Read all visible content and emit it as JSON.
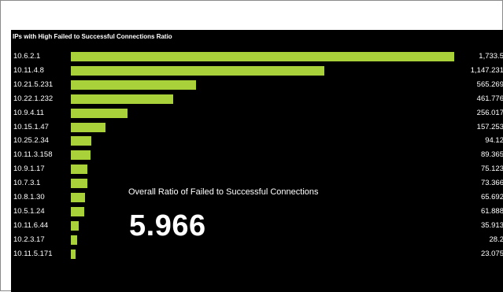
{
  "panel": {
    "title": "IPs with High Failed to Successful Connections Ratio"
  },
  "colors": {
    "bar": "#a8d13a",
    "background": "#000000",
    "text": "#ffffff"
  },
  "metric": {
    "label": "Overall Ratio of Failed to Successful Connections",
    "value": "5.966"
  },
  "chart_data": {
    "type": "bar",
    "orientation": "horizontal",
    "title": "IPs with High Failed to Successful Connections Ratio",
    "categories": [
      "10.6.2.1",
      "10.11.4.8",
      "10.21.5.231",
      "10.22.1.232",
      "10.9.4.11",
      "10.15.1.47",
      "10.25.2.34",
      "10.11.3.158",
      "10.9.1.17",
      "10.7.3.1",
      "10.8.1.30",
      "10.5.1.24",
      "10.11.6.44",
      "10.2.3.17",
      "10.11.5.171"
    ],
    "values": [
      1733.5,
      1147.231,
      565.269,
      461.776,
      256.017,
      157.253,
      94.12,
      89.365,
      75.123,
      73.366,
      65.692,
      61.888,
      35.913,
      28.2,
      23.075
    ],
    "value_labels": [
      "1,733.5",
      "1,147.231",
      "565.269",
      "461.776",
      "256.017",
      "157.253",
      "94.12",
      "89.365",
      "75.123",
      "73.366",
      "65.692",
      "61.888",
      "35.913",
      "28.2",
      "23.075"
    ],
    "xlim": [
      0,
      1733.5
    ],
    "grid": false
  }
}
